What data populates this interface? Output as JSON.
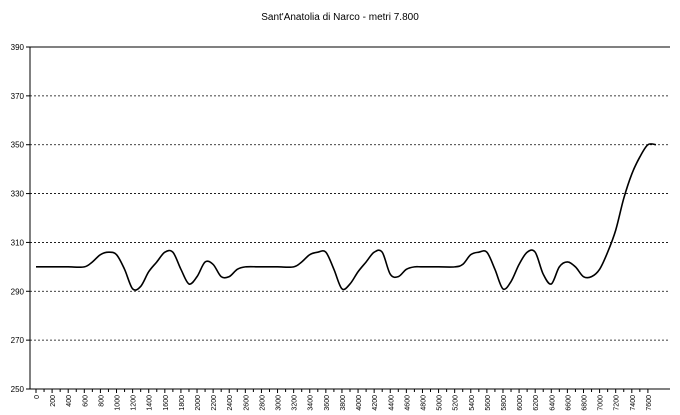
{
  "chart_data": {
    "type": "line",
    "title": "Sant'Anatolia di Narco - metri 7.800",
    "xlabel": "",
    "ylabel": "",
    "ylim": [
      250,
      390
    ],
    "y_ticks": [
      250,
      270,
      290,
      310,
      330,
      350,
      370,
      390
    ],
    "x_ticks": [
      0,
      200,
      400,
      600,
      800,
      1000,
      1200,
      1400,
      1600,
      1800,
      2000,
      2200,
      2400,
      2600,
      2800,
      3000,
      3200,
      3400,
      3600,
      3800,
      4000,
      4200,
      4400,
      4600,
      4800,
      5000,
      5200,
      5400,
      5600,
      5800,
      6000,
      6200,
      6400,
      6600,
      6800,
      7000,
      7200,
      7400,
      7600
    ],
    "xlim": [
      0,
      7800
    ],
    "grid": {
      "horizontal": true,
      "style": "dashed"
    },
    "colors": {
      "line": "#000000",
      "grid": "#000000",
      "axis": "#000000"
    },
    "series": [
      {
        "x": [
          0,
          200,
          400,
          600,
          700,
          800,
          900,
          1000,
          1100,
          1200,
          1300,
          1400,
          1500,
          1600,
          1700,
          1800,
          1900,
          2000,
          2100,
          2200,
          2300,
          2400,
          2500,
          2600,
          2800,
          3000,
          3200,
          3300,
          3400,
          3500,
          3600,
          3700,
          3800,
          3900,
          4000,
          4100,
          4200,
          4300,
          4400,
          4500,
          4600,
          4700,
          4800,
          5000,
          5200,
          5300,
          5400,
          5500,
          5600,
          5700,
          5800,
          5900,
          6000,
          6100,
          6200,
          6300,
          6400,
          6500,
          6600,
          6700,
          6800,
          6900,
          7000,
          7100,
          7200,
          7300,
          7400,
          7500,
          7600,
          7700
        ],
        "values": [
          300,
          300,
          300,
          300,
          302,
          305,
          306,
          305,
          299,
          291,
          292,
          298,
          302,
          306,
          306,
          299,
          293,
          296,
          302,
          301,
          296,
          296,
          299,
          300,
          300,
          300,
          300,
          302,
          305,
          306,
          306,
          299,
          291,
          293,
          298,
          302,
          306,
          306,
          297,
          296,
          299,
          300,
          300,
          300,
          300,
          301,
          305,
          306,
          306,
          299,
          291,
          294,
          301,
          306,
          306,
          297,
          293,
          300,
          302,
          300,
          296,
          296,
          299,
          306,
          315,
          328,
          338,
          345,
          350,
          350
        ]
      }
    ]
  }
}
